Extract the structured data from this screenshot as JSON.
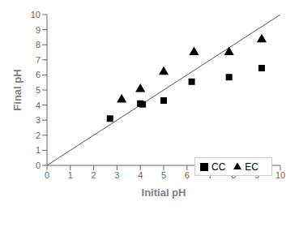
{
  "chart_data": {
    "type": "scatter",
    "xlabel": "Initial pH",
    "ylabel": "Final pH",
    "xlim": [
      0,
      10
    ],
    "ylim": [
      0,
      10
    ],
    "xticks": [
      0,
      1,
      2,
      3,
      4,
      5,
      6,
      7,
      8,
      9,
      10
    ],
    "yticks": [
      0,
      1,
      2,
      3,
      4,
      5,
      6,
      7,
      8,
      9,
      10
    ],
    "grid": false,
    "legend": "lower right",
    "series": [
      {
        "type": "line",
        "color": "#555555",
        "line_style": "solid",
        "x": [
          0,
          10
        ],
        "values": [
          0,
          10
        ]
      },
      {
        "name": "CC",
        "type": "scatter",
        "marker": "square",
        "color": "black",
        "x": [
          2.7,
          4.0,
          4.1,
          5.0,
          6.2,
          7.8,
          9.2
        ],
        "values": [
          3.1,
          4.1,
          4.05,
          4.3,
          5.55,
          5.85,
          6.45
        ]
      },
      {
        "name": "EC",
        "type": "scatter",
        "marker": "triangle",
        "color": "black",
        "x": [
          3.2,
          4.0,
          5.0,
          6.3,
          7.8,
          9.2
        ],
        "values": [
          4.35,
          5.05,
          6.2,
          7.5,
          7.5,
          8.35
        ]
      }
    ]
  }
}
